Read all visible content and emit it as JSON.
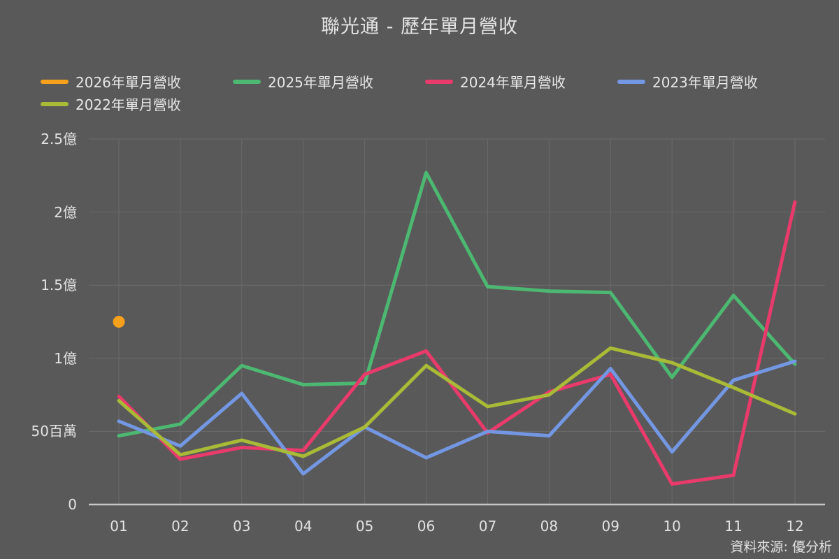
{
  "page": {
    "title": "聯光通 - 歷年單月營收",
    "source": "資料來源: 優分析"
  },
  "chart_data": {
    "type": "line",
    "title": "聯光通 - 歷年單月營收",
    "source": "資料來源: 優分析",
    "x_categories": [
      "01",
      "02",
      "03",
      "04",
      "05",
      "06",
      "07",
      "08",
      "09",
      "10",
      "11",
      "12"
    ],
    "xlabel": "",
    "ylabel": "",
    "values_unit": "百萬",
    "ylim": [
      0,
      250
    ],
    "grid": true,
    "legend_position": "top-left",
    "background_color": "#595959",
    "gridline_color": "#6A6A6A",
    "axis_line_color": "#C8C8C8",
    "text_color": "#E2E2E2",
    "y_ticks": [
      {
        "value": 0,
        "label": "0"
      },
      {
        "value": 50,
        "label": "50百萬"
      },
      {
        "value": 100,
        "label": "1億"
      },
      {
        "value": 150,
        "label": "1.5億"
      },
      {
        "value": 200,
        "label": "2億"
      },
      {
        "value": 250,
        "label": "2.5億"
      }
    ],
    "series": [
      {
        "name": "2026年單月營收",
        "year": "2026",
        "color": "#F6A01B",
        "marker": "circle",
        "values": [
          125,
          null,
          null,
          null,
          null,
          null,
          null,
          null,
          null,
          null,
          null,
          null
        ]
      },
      {
        "name": "2025年單月營收",
        "year": "2025",
        "color": "#4CB871",
        "marker": "none",
        "values": [
          47,
          55,
          95,
          82,
          83,
          227,
          149,
          146,
          145,
          87,
          143,
          96
        ]
      },
      {
        "name": "2024年單月營收",
        "year": "2024",
        "color": "#E93A6C",
        "marker": "none",
        "values": [
          74,
          31,
          39,
          37,
          89,
          105,
          49,
          77,
          89,
          14,
          20,
          207
        ]
      },
      {
        "name": "2023年單月營收",
        "year": "2023",
        "color": "#7397E3",
        "marker": "none",
        "values": [
          57,
          40,
          76,
          21,
          53,
          32,
          50,
          47,
          93,
          36,
          85,
          98
        ]
      },
      {
        "name": "2022年單月營收",
        "year": "2022",
        "color": "#A9BA37",
        "marker": "none",
        "values": [
          71,
          34,
          44,
          33,
          53,
          95,
          67,
          75,
          107,
          97,
          80,
          62
        ]
      }
    ]
  }
}
